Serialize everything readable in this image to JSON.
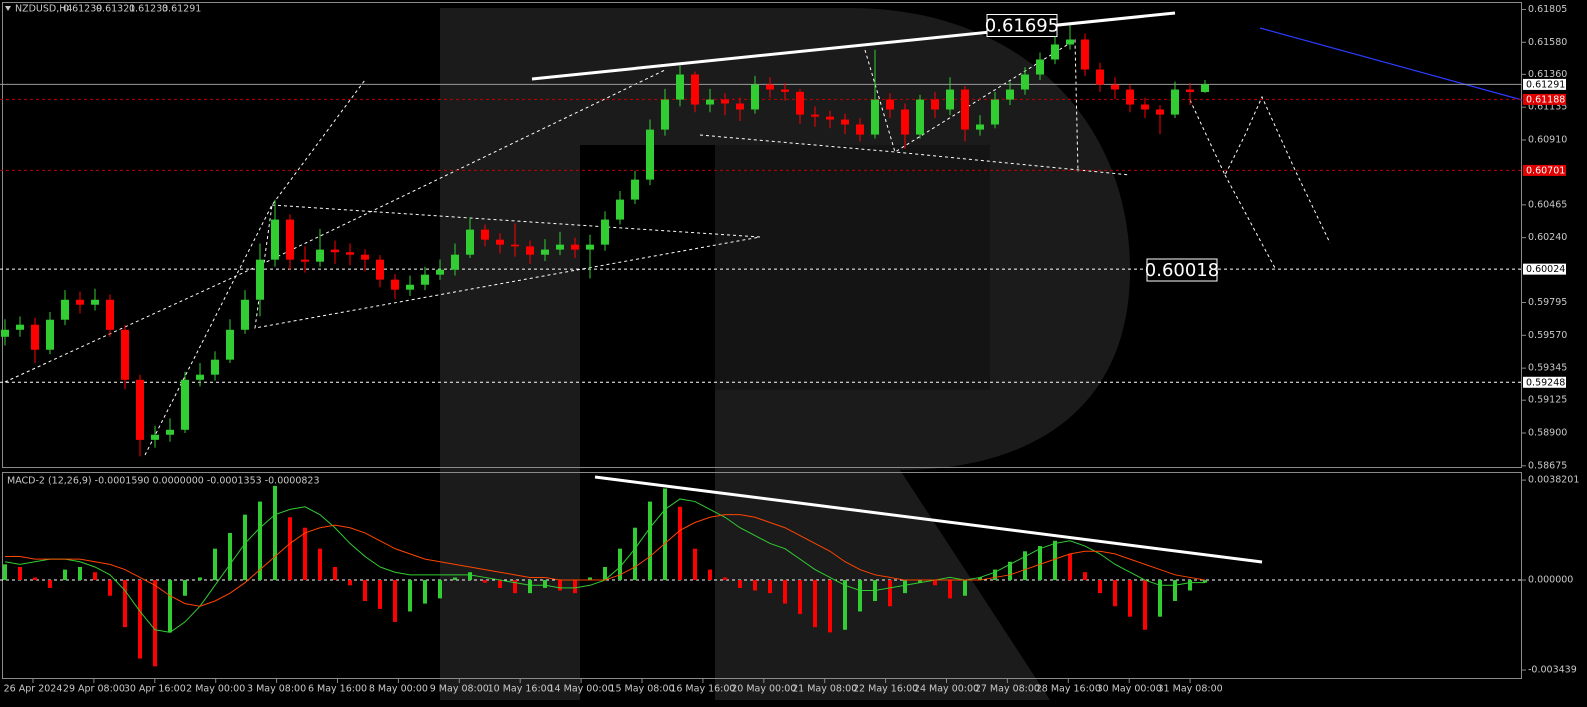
{
  "chart_data": [
    {
      "type": "candlestick",
      "title": "NZDUSD,H4",
      "x_axis_labels": [
        "26 Apr 2024",
        "29 Apr 08:00",
        "30 Apr 16:00",
        "2 May 00:00",
        "3 May 08:00",
        "6 May 16:00",
        "8 May 00:00",
        "9 May 08:00",
        "10 May 16:00",
        "14 May 00:00",
        "15 May 08:00",
        "16 May 16:00",
        "20 May 00:00",
        "21 May 08:00",
        "22 May 16:00",
        "24 May 00:00",
        "27 May 08:00",
        "28 May 16:00",
        "30 May 00:00",
        "31 May 08:00"
      ],
      "open": [
        0.5956,
        0.59608,
        0.59643,
        0.59471,
        0.59677,
        0.59814,
        0.5978,
        0.59814,
        0.59608,
        0.59265,
        0.58853,
        0.58888,
        0.58922,
        0.59265,
        0.593,
        0.59403,
        0.59608,
        0.59814,
        0.60089,
        0.60364,
        0.60089,
        0.60075,
        0.60158,
        0.6014,
        0.60123,
        0.60089,
        0.59952,
        0.59883,
        0.59917,
        0.59986,
        0.6002,
        0.60123,
        0.60295,
        0.60226,
        0.60192,
        0.6018,
        0.60123,
        0.60158,
        0.60192,
        0.60158,
        0.60192,
        0.60364,
        0.60501,
        0.60638,
        0.60981,
        0.61187,
        0.61359,
        0.61153,
        0.61187,
        0.6116,
        0.61119,
        0.6129,
        0.61256,
        0.6124,
        0.61084,
        0.6107,
        0.6105,
        0.61016,
        0.60947,
        0.61187,
        0.61119,
        0.60947,
        0.61187,
        0.61119,
        0.61256,
        0.60981,
        0.61016,
        0.61187,
        0.61256,
        0.61359,
        0.61462,
        0.61565,
        0.61599,
        0.61393,
        0.6129,
        0.61256,
        0.61153,
        0.61119,
        0.61084,
        0.61256,
        0.61239
      ],
      "high": [
        0.5968,
        0.597,
        0.5969,
        0.5973,
        0.5988,
        0.5987,
        0.5989,
        0.5985,
        0.5964,
        0.593,
        0.5895,
        0.59,
        0.5932,
        0.5938,
        0.5946,
        0.5968,
        0.5988,
        0.602,
        0.605,
        0.604,
        0.6018,
        0.603,
        0.6022,
        0.602,
        0.6016,
        0.6012,
        0.5999,
        0.5998,
        0.6004,
        0.6009,
        0.602,
        0.6038,
        0.6033,
        0.6027,
        0.6034,
        0.6022,
        0.6023,
        0.6028,
        0.6024,
        0.6026,
        0.6042,
        0.6056,
        0.607,
        0.6105,
        0.6126,
        0.6142,
        0.6138,
        0.6126,
        0.6123,
        0.612,
        0.6135,
        0.6134,
        0.613,
        0.6126,
        0.6114,
        0.6111,
        0.6109,
        0.6106,
        0.6153,
        0.6123,
        0.6116,
        0.6122,
        0.6124,
        0.6134,
        0.6128,
        0.6108,
        0.6124,
        0.6131,
        0.6141,
        0.6151,
        0.6162,
        0.61695,
        0.6164,
        0.6144,
        0.6134,
        0.6129,
        0.612,
        0.6115,
        0.6131,
        0.613,
        0.61321
      ],
      "low": [
        0.595,
        0.5956,
        0.5938,
        0.5944,
        0.5964,
        0.5972,
        0.5974,
        0.5956,
        0.592,
        0.5874,
        0.588,
        0.5884,
        0.589,
        0.5922,
        0.5926,
        0.5938,
        0.5958,
        0.597,
        0.6004,
        0.6002,
        0.6,
        0.6004,
        0.6006,
        0.6005,
        0.6001,
        0.599,
        0.5982,
        0.5984,
        0.5988,
        0.5995,
        0.5998,
        0.601,
        0.6018,
        0.6013,
        0.6011,
        0.6006,
        0.6008,
        0.6012,
        0.601,
        0.5996,
        0.6015,
        0.6033,
        0.6047,
        0.606,
        0.6094,
        0.6114,
        0.611,
        0.611,
        0.6108,
        0.6104,
        0.6109,
        0.612,
        0.6118,
        0.6102,
        0.61,
        0.6099,
        0.6095,
        0.609,
        0.6092,
        0.6106,
        0.6085,
        0.6092,
        0.6106,
        0.6108,
        0.609,
        0.6094,
        0.6099,
        0.6115,
        0.6122,
        0.6132,
        0.6143,
        0.6153,
        0.6135,
        0.6124,
        0.6119,
        0.611,
        0.6106,
        0.6095,
        0.6106,
        0.6115,
        0.61233
      ],
      "close": [
        0.59608,
        0.59643,
        0.59471,
        0.59677,
        0.59814,
        0.5978,
        0.59814,
        0.59608,
        0.59265,
        0.58853,
        0.58888,
        0.58922,
        0.59265,
        0.593,
        0.59403,
        0.59608,
        0.59814,
        0.60089,
        0.60364,
        0.60089,
        0.60075,
        0.60158,
        0.6014,
        0.60123,
        0.60089,
        0.59952,
        0.59883,
        0.59917,
        0.59986,
        0.6002,
        0.60123,
        0.60295,
        0.60226,
        0.60192,
        0.6018,
        0.60123,
        0.60158,
        0.60192,
        0.60158,
        0.60192,
        0.60364,
        0.60501,
        0.60638,
        0.60981,
        0.61187,
        0.61359,
        0.61153,
        0.61187,
        0.6116,
        0.61119,
        0.6129,
        0.61256,
        0.6124,
        0.61084,
        0.6107,
        0.6105,
        0.61016,
        0.60947,
        0.61187,
        0.61119,
        0.60947,
        0.61187,
        0.61119,
        0.61256,
        0.60981,
        0.61016,
        0.61187,
        0.61256,
        0.61359,
        0.61462,
        0.61565,
        0.61599,
        0.61393,
        0.6129,
        0.61256,
        0.61153,
        0.61119,
        0.61084,
        0.61256,
        0.61239,
        0.61291
      ],
      "up_color": "#32cd32",
      "down_color": "#ff0000",
      "ylim": [
        0.5866,
        0.6187
      ],
      "yticks": [
        0.61805,
        {
          "value": 0.6158,
          "label": "0.61580"
        },
        {
          "value": 0.6136,
          "label": "0.61360"
        },
        0.61135,
        {
          "value": 0.6091,
          "label": "0.60910"
        },
        0.60465,
        {
          "value": 0.6024,
          "label": "0.60240"
        },
        0.59795,
        {
          "value": 0.5957,
          "label": "0.59570"
        },
        0.59345,
        0.59125,
        {
          "value": 0.589,
          "label": "0.58900"
        },
        0.58675
      ],
      "levels": [
        {
          "value": 0.61291,
          "color": "#9a9a9a",
          "dashed": false,
          "tag_color": "#ffffff",
          "tag_text_color": "#000000"
        },
        {
          "value": 0.61188,
          "color": "#c00000",
          "dashed": true,
          "tag_color": "#e00000",
          "tag_text_color": "#ffffff"
        },
        {
          "value": 0.60701,
          "color": "#c00000",
          "dashed": true,
          "tag_color": "#e00000",
          "tag_text_color": "#ffffff"
        },
        {
          "value": 0.60024,
          "color": "#ffffff",
          "dashed": true,
          "tag_color": "#ffffff",
          "tag_text_color": "#000000"
        },
        {
          "value": 0.59248,
          "color": "#ffffff",
          "dashed": true,
          "tag_color": "#ffffff",
          "tag_text_color": "#000000"
        }
      ],
      "price_labels": [
        0.61695,
        0.60018
      ]
    },
    {
      "type": "macd",
      "title": "MACD-2 (12,26,9) -0.0001590 0.0000000 -0.0001353 -0.0000823",
      "histogram": [
        0.0006,
        0.0005,
        0.0001,
        -0.0003,
        0.0004,
        0.0005,
        0.0003,
        -0.0006,
        -0.0018,
        -0.003,
        -0.0033,
        -0.002,
        -0.0006,
        0.0001,
        0.0012,
        0.0018,
        0.0025,
        0.003,
        0.0036,
        0.0024,
        0.002,
        0.0012,
        0.0005,
        -0.0002,
        -0.0008,
        -0.0011,
        -0.0016,
        -0.0012,
        -0.0009,
        -0.0007,
        0.0001,
        0.0003,
        -0.0001,
        -0.0003,
        -0.0005,
        -0.0005,
        -0.0003,
        -0.0004,
        -0.0005,
        0.0001,
        0.0005,
        0.0012,
        0.002,
        0.003,
        0.0035,
        0.0028,
        0.0012,
        0.0004,
        0.0001,
        -0.0003,
        -0.0004,
        -0.0005,
        -0.0009,
        -0.0013,
        -0.0018,
        -0.002,
        -0.0019,
        -0.0012,
        -0.0008,
        -0.001,
        -0.0005,
        -0.0001,
        -0.0002,
        -0.0007,
        -0.0006,
        0.0001,
        0.0004,
        0.0007,
        0.0011,
        0.0013,
        0.0015,
        0.001,
        0.0003,
        -0.0005,
        -0.001,
        -0.0014,
        -0.0019,
        -0.0014,
        -0.0008,
        -0.0004,
        -0.0001
      ],
      "macd_line": [
        0.0007,
        0.0006,
        0.0007,
        0.0008,
        0.0008,
        0.0007,
        0.0005,
        0.0002,
        -0.0004,
        -0.0012,
        -0.0019,
        -0.002,
        -0.0016,
        -0.001,
        -0.0002,
        0.0006,
        0.0014,
        0.002,
        0.0025,
        0.0027,
        0.0028,
        0.0025,
        0.002,
        0.0014,
        0.0009,
        0.0005,
        0.0003,
        0.0002,
        0.0002,
        0.0002,
        0.0002,
        0.0002,
        0.0001,
        0,
        -0.0001,
        -0.0002,
        -0.0002,
        -0.0003,
        -0.0003,
        -0.0002,
        0,
        0.0005,
        0.0012,
        0.002,
        0.0027,
        0.0031,
        0.003,
        0.0027,
        0.0024,
        0.002,
        0.0017,
        0.0014,
        0.0012,
        0.0008,
        0.0004,
        0.0001,
        -0.0002,
        -0.0004,
        -0.0004,
        -0.0003,
        -0.0002,
        -0.0001,
        0,
        0.0001,
        0,
        0.0001,
        0.0003,
        0.0006,
        0.0009,
        0.0012,
        0.0014,
        0.0015,
        0.0013,
        0.001,
        0.0006,
        0.0003,
        0,
        -0.0002,
        -0.0002,
        -0.0001,
        -0.0001
      ],
      "signal_line": [
        0.0009,
        0.0009,
        0.0008,
        0.0008,
        0.0008,
        0.0008,
        0.0007,
        0.0006,
        0.0004,
        0.0001,
        -0.0002,
        -0.0006,
        -0.0009,
        -0.001,
        -0.0008,
        -0.0005,
        -0.0001,
        0.0004,
        0.0009,
        0.0014,
        0.0018,
        0.002,
        0.0021,
        0.002,
        0.0018,
        0.0015,
        0.0012,
        0.001,
        0.0008,
        0.0007,
        0.0006,
        0.0005,
        0.0004,
        0.0003,
        0.0002,
        0.0001,
        0.0001,
        0,
        0,
        0,
        0,
        0.0002,
        0.0005,
        0.0009,
        0.0014,
        0.0019,
        0.0022,
        0.0024,
        0.0025,
        0.0025,
        0.0024,
        0.0022,
        0.002,
        0.0017,
        0.0014,
        0.0011,
        0.0007,
        0.0004,
        0.0002,
        0.0001,
        0,
        0,
        0,
        0,
        0,
        0,
        0.0001,
        0.0002,
        0.0004,
        0.0006,
        0.0008,
        0.001,
        0.0011,
        0.0011,
        0.001,
        0.0008,
        0.0006,
        0.0004,
        0.0002,
        0.0001,
        0
      ],
      "rise_color": "#32cd32",
      "fall_color": "#ff0000",
      "macd_color": "#32cd32",
      "signal_color": "#ff4500",
      "ylim": [
        -0.00382,
        0.00413
      ],
      "yticks": [
        0.0038201,
        {
          "value": 0,
          "label": "0.000000"
        },
        -0.003439
      ],
      "zero_line": true
    }
  ]
}
